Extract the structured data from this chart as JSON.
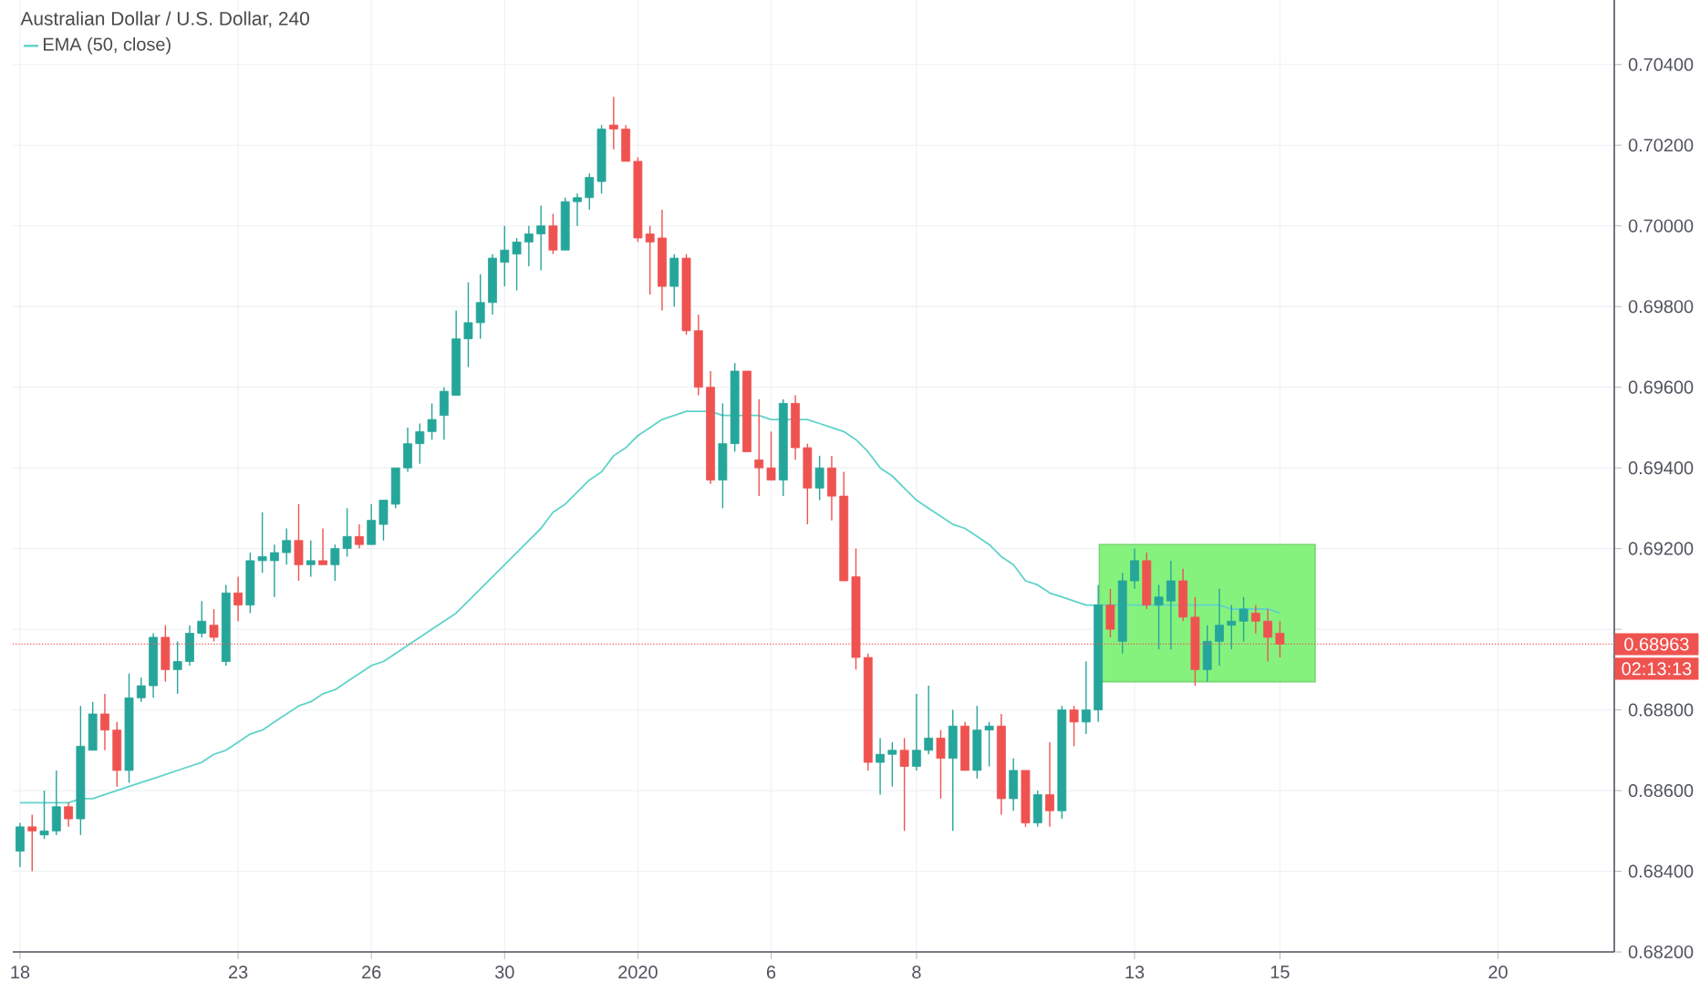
{
  "chart_data": {
    "type": "candlestick",
    "title": "Australian Dollar / U.S. Dollar, 240",
    "categories": [
      "18",
      null,
      null,
      null,
      null,
      null,
      null,
      null,
      null,
      null,
      null,
      null,
      null,
      null,
      null,
      null,
      null,
      null,
      "23",
      null,
      null,
      null,
      null,
      null,
      null,
      null,
      null,
      null,
      null,
      "26",
      null,
      null,
      null,
      null,
      null,
      null,
      null,
      null,
      null,
      null,
      "30",
      null,
      null,
      null,
      null,
      null,
      null,
      null,
      null,
      null,
      null,
      "2020",
      null,
      null,
      null,
      null,
      null,
      null,
      null,
      null,
      null,
      null,
      "6",
      null,
      null,
      null,
      null,
      null,
      null,
      null,
      null,
      null,
      null,
      null,
      "8",
      null,
      null,
      null,
      null,
      null,
      null,
      null,
      null,
      null,
      null,
      null,
      null,
      null,
      null,
      null,
      null,
      null,
      "13",
      null,
      null,
      null,
      null,
      null,
      null,
      null,
      null,
      null,
      null,
      null,
      "15",
      null,
      null,
      null,
      null,
      null,
      null,
      null,
      null,
      null,
      null,
      null,
      null,
      null,
      null,
      null,
      null,
      null,
      "20",
      null,
      null,
      null,
      null,
      null,
      null,
      null,
      null,
      null
    ],
    "ohlc": [
      [
        0.6845,
        0.6852,
        0.6841,
        0.6851
      ],
      [
        0.6851,
        0.6854,
        0.684,
        0.685
      ],
      [
        0.6849,
        0.686,
        0.6848,
        0.685
      ],
      [
        0.685,
        0.6865,
        0.6849,
        0.6856
      ],
      [
        0.6856,
        0.6857,
        0.6851,
        0.6853
      ],
      [
        0.6853,
        0.6881,
        0.6849,
        0.6871
      ],
      [
        0.687,
        0.6882,
        0.687,
        0.6879
      ],
      [
        0.6879,
        0.6884,
        0.687,
        0.6875
      ],
      [
        0.6875,
        0.6877,
        0.6861,
        0.6865
      ],
      [
        0.6865,
        0.6889,
        0.6862,
        0.6883
      ],
      [
        0.6883,
        0.6888,
        0.6882,
        0.6886
      ],
      [
        0.6886,
        0.6899,
        0.6883,
        0.6898
      ],
      [
        0.6898,
        0.6901,
        0.6887,
        0.689
      ],
      [
        0.689,
        0.6897,
        0.6884,
        0.6892
      ],
      [
        0.6892,
        0.6901,
        0.6891,
        0.6899
      ],
      [
        0.6899,
        0.6907,
        0.6898,
        0.6902
      ],
      [
        0.6901,
        0.6905,
        0.6897,
        0.6898
      ],
      [
        0.6892,
        0.6911,
        0.6891,
        0.6909
      ],
      [
        0.6909,
        0.6913,
        0.6902,
        0.6906
      ],
      [
        0.6906,
        0.6919,
        0.6904,
        0.6917
      ],
      [
        0.6917,
        0.6929,
        0.6914,
        0.6918
      ],
      [
        0.6917,
        0.6921,
        0.6908,
        0.6919
      ],
      [
        0.6919,
        0.6925,
        0.6916,
        0.6922
      ],
      [
        0.6922,
        0.6931,
        0.6912,
        0.6916
      ],
      [
        0.6916,
        0.6922,
        0.6913,
        0.6917
      ],
      [
        0.6917,
        0.6925,
        0.6916,
        0.6916
      ],
      [
        0.6916,
        0.6921,
        0.6912,
        0.692
      ],
      [
        0.692,
        0.693,
        0.6918,
        0.6923
      ],
      [
        0.6923,
        0.6926,
        0.692,
        0.6921
      ],
      [
        0.6921,
        0.6931,
        0.6921,
        0.6927
      ],
      [
        0.6926,
        0.6932,
        0.6922,
        0.6932
      ],
      [
        0.6931,
        0.694,
        0.693,
        0.694
      ],
      [
        0.694,
        0.695,
        0.6939,
        0.6946
      ],
      [
        0.6946,
        0.6951,
        0.6941,
        0.6949
      ],
      [
        0.6949,
        0.6956,
        0.6947,
        0.6952
      ],
      [
        0.6953,
        0.696,
        0.6947,
        0.6959
      ],
      [
        0.6958,
        0.6979,
        0.6958,
        0.6972
      ],
      [
        0.6972,
        0.6986,
        0.6965,
        0.6976
      ],
      [
        0.6976,
        0.6988,
        0.6972,
        0.6981
      ],
      [
        0.6981,
        0.6993,
        0.6978,
        0.6992
      ],
      [
        0.6991,
        0.7,
        0.6985,
        0.6994
      ],
      [
        0.6993,
        0.6997,
        0.6984,
        0.6996
      ],
      [
        0.6996,
        0.7,
        0.699,
        0.6998
      ],
      [
        0.6998,
        0.7005,
        0.6989,
        0.7
      ],
      [
        0.7,
        0.7003,
        0.6993,
        0.6994
      ],
      [
        0.6994,
        0.7007,
        0.6994,
        0.7006
      ],
      [
        0.7006,
        0.7008,
        0.7,
        0.7007
      ],
      [
        0.7007,
        0.7013,
        0.7004,
        0.7012
      ],
      [
        0.7011,
        0.7025,
        0.7008,
        0.7024
      ],
      [
        0.7025,
        0.7032,
        0.7019,
        0.7024
      ],
      [
        0.7024,
        0.7025,
        0.7016,
        0.7016
      ],
      [
        0.7016,
        0.7017,
        0.6996,
        0.6997
      ],
      [
        0.6998,
        0.7,
        0.6983,
        0.6996
      ],
      [
        0.6997,
        0.7004,
        0.6979,
        0.6985
      ],
      [
        0.6985,
        0.6993,
        0.698,
        0.6992
      ],
      [
        0.6992,
        0.6993,
        0.6973,
        0.6974
      ],
      [
        0.6974,
        0.6978,
        0.6958,
        0.696
      ],
      [
        0.696,
        0.6964,
        0.6936,
        0.6937
      ],
      [
        0.6937,
        0.6956,
        0.693,
        0.6946
      ],
      [
        0.6946,
        0.6966,
        0.6944,
        0.6964
      ],
      [
        0.6964,
        0.6964,
        0.6944,
        0.6944
      ],
      [
        0.6942,
        0.6957,
        0.6933,
        0.694
      ],
      [
        0.694,
        0.6949,
        0.6937,
        0.6937
      ],
      [
        0.6937,
        0.6957,
        0.6933,
        0.6956
      ],
      [
        0.6956,
        0.6958,
        0.6942,
        0.6945
      ],
      [
        0.6945,
        0.6946,
        0.6926,
        0.6935
      ],
      [
        0.6935,
        0.6943,
        0.6932,
        0.694
      ],
      [
        0.694,
        0.6943,
        0.6927,
        0.6933
      ],
      [
        0.6933,
        0.6939,
        0.6912,
        0.6912
      ],
      [
        0.6913,
        0.692,
        0.689,
        0.6893
      ],
      [
        0.6893,
        0.6894,
        0.6865,
        0.6867
      ],
      [
        0.6867,
        0.6873,
        0.6859,
        0.6869
      ],
      [
        0.6869,
        0.6872,
        0.6861,
        0.687
      ],
      [
        0.687,
        0.6873,
        0.685,
        0.6866
      ],
      [
        0.6866,
        0.6884,
        0.6865,
        0.687
      ],
      [
        0.687,
        0.6886,
        0.6869,
        0.6873
      ],
      [
        0.6873,
        0.6875,
        0.6858,
        0.6868
      ],
      [
        0.6868,
        0.688,
        0.685,
        0.6876
      ],
      [
        0.6876,
        0.6877,
        0.6865,
        0.6865
      ],
      [
        0.6865,
        0.6881,
        0.6863,
        0.6875
      ],
      [
        0.6875,
        0.6877,
        0.6866,
        0.6876
      ],
      [
        0.6876,
        0.6879,
        0.6854,
        0.6858
      ],
      [
        0.6858,
        0.6868,
        0.6855,
        0.6865
      ],
      [
        0.6865,
        0.6865,
        0.6851,
        0.6852
      ],
      [
        0.6852,
        0.686,
        0.6851,
        0.6859
      ],
      [
        0.6859,
        0.6872,
        0.6851,
        0.6855
      ],
      [
        0.6855,
        0.6881,
        0.6853,
        0.688
      ],
      [
        0.688,
        0.6881,
        0.6871,
        0.6877
      ],
      [
        0.6877,
        0.6892,
        0.6874,
        0.688
      ],
      [
        0.688,
        0.6911,
        0.6877,
        0.6906
      ],
      [
        0.6906,
        0.691,
        0.6898,
        0.69
      ],
      [
        0.6897,
        0.6914,
        0.6894,
        0.6912
      ],
      [
        0.6912,
        0.692,
        0.691,
        0.6917
      ],
      [
        0.6917,
        0.6919,
        0.6905,
        0.6906
      ],
      [
        0.6906,
        0.6911,
        0.6895,
        0.6908
      ],
      [
        0.6907,
        0.6917,
        0.6895,
        0.6912
      ],
      [
        0.6912,
        0.6915,
        0.6902,
        0.6903
      ],
      [
        0.6903,
        0.6908,
        0.6886,
        0.689
      ],
      [
        0.689,
        0.6901,
        0.6887,
        0.6897
      ],
      [
        0.6897,
        0.691,
        0.6891,
        0.6901
      ],
      [
        0.6901,
        0.6906,
        0.6895,
        0.6902
      ],
      [
        0.6902,
        0.6908,
        0.6897,
        0.6905
      ],
      [
        0.6904,
        0.6906,
        0.6899,
        0.6902
      ],
      [
        0.6902,
        0.6905,
        0.6892,
        0.6898
      ],
      [
        0.6899,
        0.6902,
        0.6893,
        0.68963
      ],
      null,
      null,
      null,
      null,
      null,
      null,
      null,
      null,
      null,
      null,
      null,
      null,
      null,
      null,
      null,
      null,
      null,
      null,
      null,
      null,
      null,
      null,
      null,
      null,
      null,
      null,
      null
    ],
    "colors": [
      "#26a69a",
      "#ef5350",
      "#26a69a",
      "#26a69a",
      "#ef5350",
      "#26a69a",
      "#26a69a",
      "#ef5350",
      "#ef5350",
      "#26a69a",
      "#26a69a",
      "#26a69a",
      "#ef5350",
      "#26a69a",
      "#26a69a",
      "#26a69a",
      "#ef5350",
      "#26a69a",
      "#ef5350",
      "#26a69a",
      "#26a69a",
      "#26a69a",
      "#26a69a",
      "#ef5350",
      "#26a69a",
      "#ef5350",
      "#26a69a",
      "#26a69a",
      "#ef5350",
      "#26a69a",
      "#26a69a",
      "#26a69a",
      "#26a69a",
      "#26a69a",
      "#26a69a",
      "#26a69a",
      "#26a69a",
      "#26a69a",
      "#26a69a",
      "#26a69a",
      "#26a69a",
      "#26a69a",
      "#26a69a",
      "#26a69a",
      "#ef5350",
      "#26a69a",
      "#26a69a",
      "#26a69a",
      "#26a69a",
      "#ef5350",
      "#ef5350",
      "#ef5350",
      "#ef5350",
      "#ef5350",
      "#26a69a",
      "#ef5350",
      "#ef5350",
      "#ef5350",
      "#26a69a",
      "#26a69a",
      "#ef5350",
      "#ef5350",
      "#ef5350",
      "#26a69a",
      "#ef5350",
      "#ef5350",
      "#26a69a",
      "#ef5350",
      "#ef5350",
      "#ef5350",
      "#ef5350",
      "#26a69a",
      "#26a69a",
      "#ef5350",
      "#26a69a",
      "#26a69a",
      "#ef5350",
      "#26a69a",
      "#ef5350",
      "#26a69a",
      "#26a69a",
      "#ef5350",
      "#26a69a",
      "#ef5350",
      "#26a69a",
      "#ef5350",
      "#26a69a",
      "#ef5350",
      "#26a69a",
      "#26a69a",
      "#ef5350",
      "#26a69a",
      "#26a69a",
      "#ef5350",
      "#26a69a",
      "#26a69a",
      "#ef5350",
      "#ef5350",
      "#26a69a",
      "#26a69a",
      "#26a69a",
      "#26a69a",
      "#ef5350",
      "#ef5350",
      "#ef5350",
      null,
      null,
      null,
      null,
      null,
      null,
      null,
      null,
      null,
      null,
      null,
      null,
      null,
      null,
      null,
      null,
      null,
      null,
      null,
      null,
      null,
      null,
      null,
      null,
      null,
      null,
      null
    ],
    "series": [
      {
        "name": "EMA (50, close)",
        "type": "line",
        "color": "#5fd3c9",
        "values": [
          0.6857,
          0.6857,
          0.6857,
          0.6857,
          0.6857,
          0.6858,
          0.6858,
          0.6859,
          0.686,
          0.6861,
          0.6862,
          0.6863,
          0.6864,
          0.6865,
          0.6866,
          0.6867,
          0.6869,
          0.687,
          0.6872,
          0.6874,
          0.6875,
          0.6877,
          0.6879,
          0.6881,
          0.6882,
          0.6884,
          0.6885,
          0.6887,
          0.6889,
          0.6891,
          0.6892,
          0.6894,
          0.6896,
          0.6898,
          0.69,
          0.6902,
          0.6904,
          0.6907,
          0.691,
          0.6913,
          0.6916,
          0.6919,
          0.6922,
          0.6925,
          0.6929,
          0.6931,
          0.6934,
          0.6937,
          0.6939,
          0.6943,
          0.6945,
          0.6948,
          0.695,
          0.6952,
          0.6953,
          0.6954,
          0.6954,
          0.6954,
          0.6953,
          0.6953,
          0.6953,
          0.6953,
          0.6952,
          0.6952,
          0.6952,
          0.6952,
          0.6951,
          0.695,
          0.6949,
          0.6947,
          0.6944,
          0.694,
          0.6938,
          0.6935,
          0.6932,
          0.693,
          0.6928,
          0.6926,
          0.6925,
          0.6923,
          0.6921,
          0.6918,
          0.6916,
          0.6912,
          0.6911,
          0.6909,
          0.6908,
          0.6907,
          0.6906,
          0.6906,
          0.6906,
          0.6906,
          0.6906,
          0.6906,
          0.6906,
          0.6906,
          0.6906,
          0.6906,
          0.6906,
          0.6906,
          0.6905,
          0.6905,
          0.6905,
          0.6905,
          0.6904,
          null,
          null,
          null,
          null,
          null,
          null,
          null,
          null,
          null,
          null,
          null,
          null,
          null,
          null,
          null,
          null,
          null,
          null,
          null,
          null,
          null,
          null,
          null,
          null,
          null,
          null,
          null
        ]
      }
    ],
    "ylim": [
      0.682,
      0.7056
    ],
    "yticks": [
      {
        "value": 0.682,
        "label": "0.68200"
      },
      {
        "value": 0.684,
        "label": "0.68400"
      },
      {
        "value": 0.686,
        "label": "0.68600"
      },
      {
        "value": 0.688,
        "label": "0.68800"
      },
      {
        "value": 0.69,
        "label": null
      },
      {
        "value": 0.692,
        "label": "0.69200"
      },
      {
        "value": 0.694,
        "label": "0.69400"
      },
      {
        "value": 0.696,
        "label": "0.69600"
      },
      {
        "value": 0.698,
        "label": "0.69800"
      },
      {
        "value": 0.7,
        "label": "0.70000"
      },
      {
        "value": 0.702,
        "label": "0.70200"
      },
      {
        "value": 0.704,
        "label": "0.70400"
      }
    ],
    "ref_lines": [
      {
        "axis": "y",
        "value": 0.68963,
        "label": "0.68963",
        "color": "#ef5350",
        "line_style": "dotted"
      }
    ],
    "bands": [
      {
        "axis": "y",
        "from": 0.6887,
        "to": 0.6921,
        "color": "#86f27e"
      }
    ],
    "annotations": [
      "02:13:13"
    ],
    "grid": true,
    "legend": "top left"
  }
}
